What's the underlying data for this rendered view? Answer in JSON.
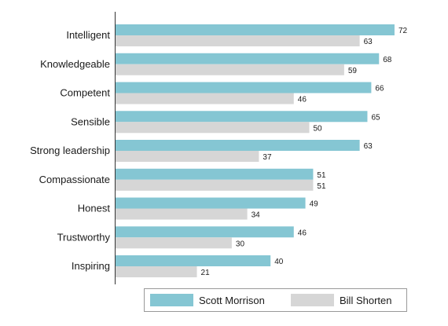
{
  "chart_data": {
    "type": "bar",
    "orientation": "horizontal",
    "categories": [
      "Intelligent",
      "Knowledgeable",
      "Competent",
      "Sensible",
      "Strong leadership",
      "Compassionate",
      "Honest",
      "Trustworthy",
      "Inspiring"
    ],
    "series": [
      {
        "name": "Scott Morrison",
        "values": [
          72,
          68,
          66,
          65,
          63,
          51,
          49,
          46,
          40
        ],
        "color": "#85c6d3"
      },
      {
        "name": "Bill Shorten",
        "values": [
          63,
          59,
          46,
          50,
          37,
          51,
          34,
          30,
          21
        ],
        "color": "#d6d6d6"
      }
    ],
    "xlim": [
      0,
      80
    ],
    "grid": false,
    "legend_position": "bottom-right",
    "data_labels": true
  },
  "colors": {
    "axis": "#333333",
    "legend_border": "#999999"
  }
}
